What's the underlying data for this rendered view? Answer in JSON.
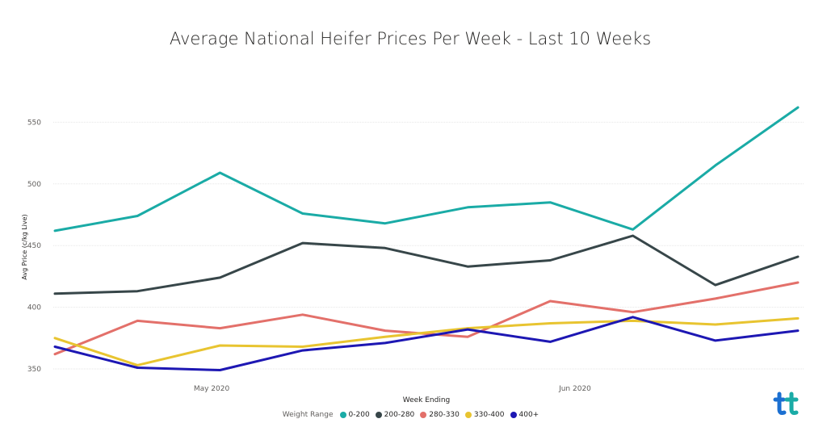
{
  "chart_data": {
    "type": "line",
    "title": "Average National Heifer Prices Per Week - Last 10 Weeks",
    "xlabel": "Week Ending",
    "ylabel": "Avg Price (c/kg Live)",
    "x_tick_labels": [
      "May 2020",
      "Jun 2020"
    ],
    "y_ticks": [
      350,
      400,
      450,
      500,
      550
    ],
    "ylim": [
      345,
      570
    ],
    "grid": true,
    "legend_title": "Weight Range",
    "legend_position": "bottom",
    "series": [
      {
        "name": "0-200",
        "color": "#1aaba6",
        "values": [
          462,
          474,
          509,
          476,
          468,
          481,
          485,
          463,
          515,
          562
        ]
      },
      {
        "name": "200-280",
        "color": "#374649",
        "values": [
          411,
          413,
          424,
          452,
          448,
          433,
          438,
          458,
          418,
          441
        ]
      },
      {
        "name": "280-330",
        "color": "#e3706a",
        "values": [
          362,
          389,
          383,
          394,
          381,
          376,
          405,
          396,
          407,
          420
        ]
      },
      {
        "name": "330-400",
        "color": "#e8c430",
        "values": [
          375,
          353,
          369,
          368,
          376,
          383,
          387,
          389,
          386,
          391
        ]
      },
      {
        "name": "400+",
        "color": "#1d17b3",
        "values": [
          368,
          351,
          349,
          365,
          371,
          382,
          372,
          392,
          373,
          381
        ]
      }
    ]
  }
}
